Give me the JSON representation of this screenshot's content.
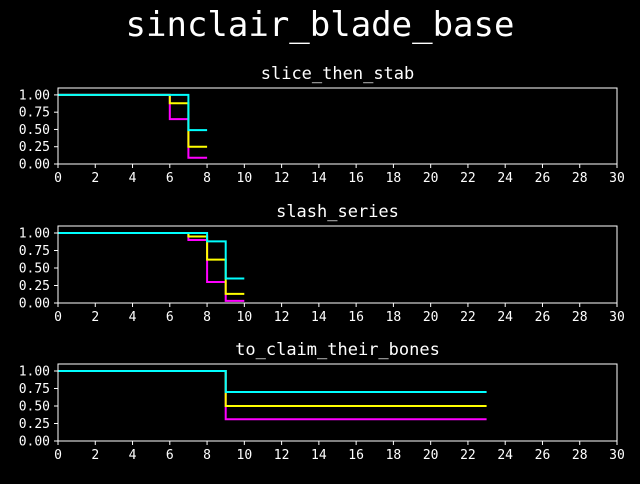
{
  "figure": {
    "title": "sinclair_blade_base"
  },
  "colors": {
    "background": "#000000",
    "axes": "#ffffff",
    "series": [
      "#ff00ff",
      "#ffff00",
      "#00ffff"
    ]
  },
  "chart_data": [
    {
      "type": "line",
      "step": "post",
      "title": "slice_then_stab",
      "xlabel": "",
      "ylabel": "",
      "xlim": [
        0,
        30
      ],
      "ylim": [
        0,
        1.1
      ],
      "xticks": [
        "0",
        "2",
        "4",
        "6",
        "8",
        "10",
        "12",
        "14",
        "16",
        "18",
        "20",
        "22",
        "24",
        "26",
        "28",
        "30"
      ],
      "yticks": [
        "0.00",
        "0.25",
        "0.50",
        "0.75",
        "1.00"
      ],
      "grid": false,
      "series": [
        {
          "color": "#ff00ff",
          "x": [
            0,
            6,
            7,
            8
          ],
          "y": [
            1.0,
            0.65,
            0.09,
            0.09
          ]
        },
        {
          "color": "#ffff00",
          "x": [
            0,
            6,
            7,
            8
          ],
          "y": [
            1.0,
            0.88,
            0.25,
            0.25
          ]
        },
        {
          "color": "#00ffff",
          "x": [
            0,
            7,
            8
          ],
          "y": [
            1.0,
            0.49,
            0.49
          ]
        }
      ]
    },
    {
      "type": "line",
      "step": "post",
      "title": "slash_series",
      "xlabel": "",
      "ylabel": "",
      "xlim": [
        0,
        30
      ],
      "ylim": [
        0,
        1.1
      ],
      "xticks": [
        "0",
        "2",
        "4",
        "6",
        "8",
        "10",
        "12",
        "14",
        "16",
        "18",
        "20",
        "22",
        "24",
        "26",
        "28",
        "30"
      ],
      "yticks": [
        "0.00",
        "0.25",
        "0.50",
        "0.75",
        "1.00"
      ],
      "grid": false,
      "series": [
        {
          "color": "#ff00ff",
          "x": [
            0,
            7,
            8,
            9,
            10
          ],
          "y": [
            1.0,
            0.9,
            0.3,
            0.03,
            0.03
          ]
        },
        {
          "color": "#ffff00",
          "x": [
            0,
            7,
            8,
            9,
            10
          ],
          "y": [
            1.0,
            0.95,
            0.62,
            0.13,
            0.13
          ]
        },
        {
          "color": "#00ffff",
          "x": [
            0,
            8,
            9,
            10
          ],
          "y": [
            1.0,
            0.88,
            0.35,
            0.35
          ]
        }
      ]
    },
    {
      "type": "line",
      "step": "post",
      "title": "to_claim_their_bones",
      "xlabel": "",
      "ylabel": "",
      "xlim": [
        0,
        30
      ],
      "ylim": [
        0,
        1.1
      ],
      "xticks": [
        "0",
        "2",
        "4",
        "6",
        "8",
        "10",
        "12",
        "14",
        "16",
        "18",
        "20",
        "22",
        "24",
        "26",
        "28",
        "30"
      ],
      "yticks": [
        "0.00",
        "0.25",
        "0.50",
        "0.75",
        "1.00"
      ],
      "grid": false,
      "series": [
        {
          "color": "#ff00ff",
          "x": [
            0,
            9,
            23
          ],
          "y": [
            1.0,
            0.31,
            0.31
          ]
        },
        {
          "color": "#ffff00",
          "x": [
            0,
            9,
            23
          ],
          "y": [
            1.0,
            0.5,
            0.5
          ]
        },
        {
          "color": "#00ffff",
          "x": [
            0,
            9,
            23
          ],
          "y": [
            1.0,
            0.7,
            0.7
          ]
        }
      ]
    }
  ]
}
